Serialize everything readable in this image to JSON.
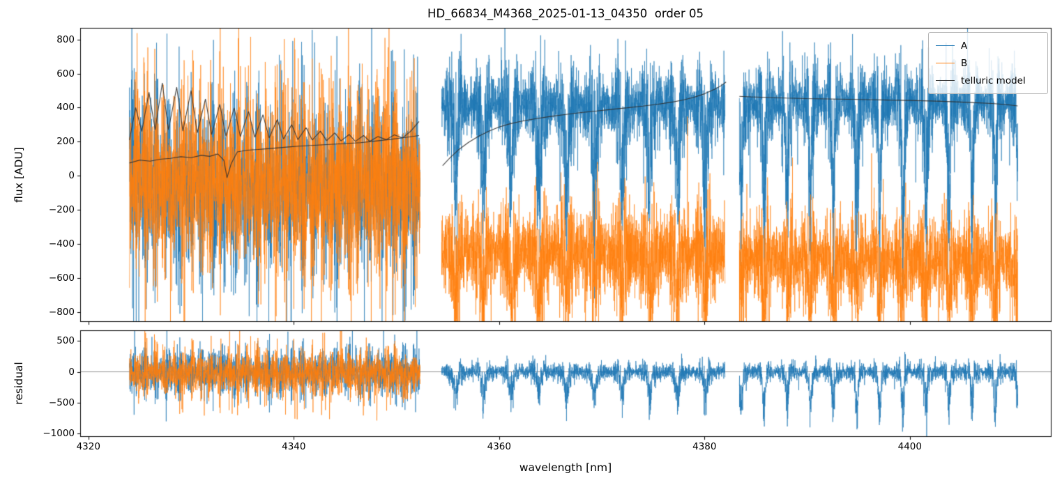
{
  "chart_data": {
    "type": "line",
    "title": "HD_66834_M4368_2025-01-13_04350  order 05",
    "xlabel": "wavelength [nm]",
    "xlim": [
      4319.2,
      4413.8
    ],
    "xticks": [
      4320,
      4340,
      4360,
      4380,
      4400
    ],
    "background": "#ffffff",
    "legend": {
      "position": "upper right",
      "entries": [
        {
          "label": "A",
          "color": "#1f77b4"
        },
        {
          "label": "B",
          "color": "#ff7f0e"
        },
        {
          "label": "telluric model",
          "color": "#3a3a3a"
        }
      ]
    },
    "panels": [
      {
        "name": "flux",
        "ylabel": "flux [ADU]",
        "ylim": [
          -858,
          868
        ],
        "yticks": [
          800,
          600,
          400,
          200,
          0,
          -200,
          -400,
          -600,
          -800
        ],
        "series": [
          {
            "name": "A",
            "color": "#1f77b4",
            "alpha": 0.7,
            "line_width": 0.9,
            "segments": [
              {
                "x0": 4324.0,
                "x1": 4352.3,
                "n": 2800,
                "base": -60,
                "sigma": 240,
                "cluster_period": 1.1,
                "cluster_amp": 0.45,
                "spike_prob": 0.012,
                "spike_amp": 900,
                "spike_bias": -0.2,
                "dip_period": 0,
                "dip_depth": 0,
                "dip_pow": 1,
                "seed": 11
              },
              {
                "x0": 4354.4,
                "x1": 4382.0,
                "n": 2800,
                "base": 420,
                "sigma": 130,
                "cluster_period": 2.7,
                "cluster_amp": 0.5,
                "spike_prob": 0.004,
                "spike_amp": 520,
                "spike_bias": -0.6,
                "dip_period": 2.7,
                "dip_depth": 520,
                "dip_pow": 6,
                "seed": 12
              },
              {
                "x0": 4383.4,
                "x1": 4410.5,
                "n": 2800,
                "base": 430,
                "sigma": 120,
                "cluster_period": 2.25,
                "cluster_amp": 0.5,
                "spike_prob": 0.004,
                "spike_amp": 480,
                "spike_bias": -0.6,
                "dip_period": 2.25,
                "dip_depth": 620,
                "dip_pow": 8,
                "seed": 13
              }
            ]
          },
          {
            "name": "B",
            "color": "#ff7f0e",
            "alpha": 0.7,
            "line_width": 0.9,
            "segments": [
              {
                "x0": 4324.0,
                "x1": 4352.3,
                "n": 2800,
                "base": -40,
                "sigma": 260,
                "cluster_period": 0.9,
                "cluster_amp": 0.4,
                "spike_prob": 0.014,
                "spike_amp": 950,
                "spike_bias": 0.15,
                "dip_period": 0,
                "dip_depth": 0,
                "dip_pow": 1,
                "seed": 21
              },
              {
                "x0": 4354.4,
                "x1": 4382.0,
                "n": 2800,
                "base": -450,
                "sigma": 150,
                "cluster_period": 2.7,
                "cluster_amp": 0.35,
                "spike_prob": 0.005,
                "spike_amp": 700,
                "spike_bias": 0.3,
                "dip_period": 2.7,
                "dip_depth": 260,
                "dip_pow": 8,
                "seed": 22
              },
              {
                "x0": 4383.4,
                "x1": 4410.5,
                "n": 2800,
                "base": -490,
                "sigma": 140,
                "cluster_period": 2.25,
                "cluster_amp": 0.4,
                "spike_prob": 0.005,
                "spike_amp": 750,
                "spike_bias": 0.3,
                "dip_period": 2.25,
                "dip_depth": 280,
                "dip_pow": 8,
                "seed": 23
              }
            ]
          }
        ],
        "model_lines": [
          {
            "name": "telluric-segment1-upper",
            "color": "#303030",
            "alpha": 0.9,
            "line_width": 1.1,
            "points": [
              [
                4324.0,
                210
              ],
              [
                4324.6,
                400
              ],
              [
                4325.2,
                260
              ],
              [
                4325.9,
                490
              ],
              [
                4326.5,
                270
              ],
              [
                4327.2,
                545
              ],
              [
                4327.8,
                270
              ],
              [
                4328.6,
                520
              ],
              [
                4329.2,
                262
              ],
              [
                4330.0,
                500
              ],
              [
                4330.6,
                252
              ],
              [
                4331.4,
                450
              ],
              [
                4332.0,
                242
              ],
              [
                4332.8,
                420
              ],
              [
                4333.4,
                232
              ],
              [
                4334.2,
                398
              ],
              [
                4334.8,
                230
              ],
              [
                4335.6,
                378
              ],
              [
                4336.2,
                226
              ],
              [
                4337.0,
                358
              ],
              [
                4337.6,
                222
              ],
              [
                4338.4,
                330
              ],
              [
                4339.0,
                216
              ],
              [
                4339.8,
                300
              ],
              [
                4340.4,
                212
              ],
              [
                4341.2,
                282
              ],
              [
                4341.8,
                210
              ],
              [
                4342.6,
                262
              ],
              [
                4343.2,
                206
              ],
              [
                4344.0,
                252
              ],
              [
                4344.6,
                205
              ],
              [
                4345.4,
                242
              ],
              [
                4346.0,
                202
              ],
              [
                4346.8,
                236
              ],
              [
                4347.4,
                202
              ],
              [
                4348.2,
                230
              ],
              [
                4349.0,
                212
              ],
              [
                4349.8,
                240
              ],
              [
                4350.6,
                222
              ],
              [
                4351.4,
                262
              ],
              [
                4352.2,
                318
              ]
            ]
          },
          {
            "name": "telluric-segment1-lower",
            "color": "#303030",
            "alpha": 0.9,
            "line_width": 1.1,
            "points": [
              [
                4324.0,
                75
              ],
              [
                4325.0,
                92
              ],
              [
                4326.0,
                86
              ],
              [
                4327.0,
                97
              ],
              [
                4328.0,
                102
              ],
              [
                4329.0,
                112
              ],
              [
                4330.0,
                106
              ],
              [
                4331.0,
                120
              ],
              [
                4331.8,
                114
              ],
              [
                4332.6,
                128
              ],
              [
                4333.2,
                90
              ],
              [
                4333.5,
                -12
              ],
              [
                4333.9,
                70
              ],
              [
                4334.5,
                140
              ],
              [
                4335.5,
                150
              ],
              [
                4336.5,
                154
              ],
              [
                4337.5,
                159
              ],
              [
                4338.5,
                164
              ],
              [
                4339.5,
                169
              ],
              [
                4340.5,
                174
              ],
              [
                4342.0,
                179
              ],
              [
                4343.5,
                184
              ],
              [
                4345.0,
                189
              ],
              [
                4346.5,
                194
              ],
              [
                4348.0,
                204
              ],
              [
                4349.5,
                214
              ],
              [
                4351.0,
                226
              ],
              [
                4352.2,
                236
              ]
            ]
          },
          {
            "name": "telluric-segment2",
            "color": "#303030",
            "alpha": 0.9,
            "line_width": 1.1,
            "points": [
              [
                4354.5,
                60
              ],
              [
                4355.2,
                105
              ],
              [
                4356.0,
                150
              ],
              [
                4357.0,
                195
              ],
              [
                4358.0,
                232
              ],
              [
                4359.0,
                262
              ],
              [
                4360.0,
                286
              ],
              [
                4361.0,
                304
              ],
              [
                4362.0,
                318
              ],
              [
                4363.5,
                334
              ],
              [
                4365.0,
                348
              ],
              [
                4366.5,
                360
              ],
              [
                4368.0,
                371
              ],
              [
                4369.5,
                380
              ],
              [
                4371.0,
                390
              ],
              [
                4372.5,
                399
              ],
              [
                4374.0,
                409
              ],
              [
                4375.5,
                420
              ],
              [
                4377.0,
                434
              ],
              [
                4378.0,
                446
              ],
              [
                4379.0,
                461
              ],
              [
                4380.0,
                481
              ],
              [
                4381.0,
                508
              ],
              [
                4381.6,
                528
              ],
              [
                4382.1,
                550
              ]
            ]
          },
          {
            "name": "telluric-segment3",
            "color": "#303030",
            "alpha": 0.9,
            "line_width": 1.1,
            "points": [
              [
                4383.4,
                466
              ],
              [
                4384.5,
                463
              ],
              [
                4386.0,
                460
              ],
              [
                4388.0,
                456
              ],
              [
                4390.0,
                453
              ],
              [
                4392.0,
                451
              ],
              [
                4394.0,
                449
              ],
              [
                4396.0,
                447
              ],
              [
                4398.0,
                444
              ],
              [
                4400.0,
                442
              ],
              [
                4402.0,
                439
              ],
              [
                4404.0,
                435
              ],
              [
                4406.0,
                430
              ],
              [
                4408.0,
                424
              ],
              [
                4409.5,
                417
              ],
              [
                4410.5,
                410
              ]
            ]
          }
        ]
      },
      {
        "name": "residual",
        "ylabel": "residual",
        "ylim": [
          -1055,
          672
        ],
        "yticks": [
          500,
          0,
          -500,
          -1000
        ],
        "zero_line": {
          "y": 0,
          "color": "#808080",
          "line_width": 0.8
        },
        "series": [
          {
            "name": "A residual",
            "color": "#1f77b4",
            "alpha": 0.75,
            "line_width": 0.9,
            "segments": [
              {
                "x0": 4324.0,
                "x1": 4352.3,
                "n": 2200,
                "base": 0,
                "sigma": 180,
                "cluster_period": 1.1,
                "cluster_amp": 0.4,
                "spike_prob": 0.012,
                "spike_amp": 720,
                "spike_bias": -0.3,
                "dip_period": 0,
                "dip_depth": 0,
                "dip_pow": 1,
                "seed": 31
              },
              {
                "x0": 4354.4,
                "x1": 4382.0,
                "n": 2200,
                "base": 0,
                "sigma": 85,
                "cluster_period": 2.7,
                "cluster_amp": 0.4,
                "spike_prob": 0.004,
                "spike_amp": 420,
                "spike_bias": 0.2,
                "dip_period": 2.7,
                "dip_depth": 430,
                "dip_pow": 6,
                "seed": 32
              },
              {
                "x0": 4383.4,
                "x1": 4410.5,
                "n": 2200,
                "base": 0,
                "sigma": 85,
                "cluster_period": 2.25,
                "cluster_amp": 0.4,
                "spike_prob": 0.004,
                "spike_amp": 380,
                "spike_bias": -0.2,
                "dip_period": 2.25,
                "dip_depth": 620,
                "dip_pow": 8,
                "seed": 33
              }
            ]
          },
          {
            "name": "B residual",
            "color": "#ff7f0e",
            "alpha": 0.75,
            "line_width": 0.9,
            "segments": [
              {
                "x0": 4324.0,
                "x1": 4352.3,
                "n": 2200,
                "base": -30,
                "sigma": 190,
                "cluster_period": 0.9,
                "cluster_amp": 0.4,
                "spike_prob": 0.014,
                "spike_amp": 760,
                "spike_bias": -0.3,
                "dip_period": 0,
                "dip_depth": 0,
                "dip_pow": 1,
                "seed": 34
              }
            ]
          }
        ]
      }
    ]
  }
}
